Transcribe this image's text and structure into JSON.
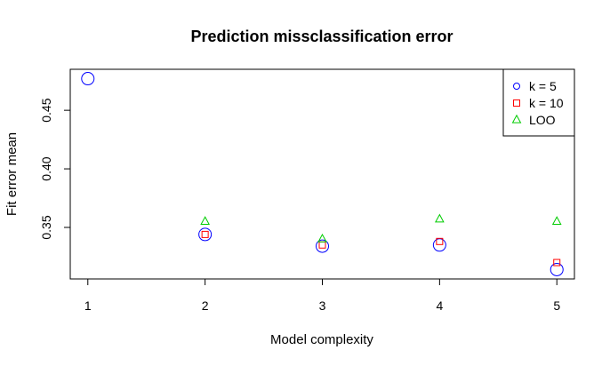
{
  "chart_data": {
    "type": "scatter",
    "title": "Prediction missclassification error",
    "xlabel": "Model complexity",
    "ylabel": "Fit error mean",
    "x": [
      1,
      2,
      3,
      4,
      5
    ],
    "x_ticks": [
      "1",
      "2",
      "3",
      "4",
      "5"
    ],
    "y_ticks": [
      {
        "value": 0.35,
        "label": "0.35"
      },
      {
        "value": 0.4,
        "label": "0.40"
      },
      {
        "value": 0.45,
        "label": "0.45"
      }
    ],
    "xlim": [
      0.85,
      5.15
    ],
    "ylim": [
      0.306,
      0.485
    ],
    "grid": false,
    "legend_position": "top-right",
    "series": [
      {
        "name": "k = 5",
        "marker": "circle",
        "color": "#0000ff",
        "values": [
          0.477,
          0.344,
          0.334,
          0.335,
          0.314
        ]
      },
      {
        "name": "k = 10",
        "marker": "square",
        "color": "#ff0000",
        "values": [
          null,
          0.344,
          0.335,
          0.338,
          0.32
        ]
      },
      {
        "name": "LOO",
        "marker": "triangle",
        "color": "#00cc00",
        "values": [
          null,
          0.355,
          0.34,
          0.357,
          0.355
        ]
      }
    ]
  }
}
